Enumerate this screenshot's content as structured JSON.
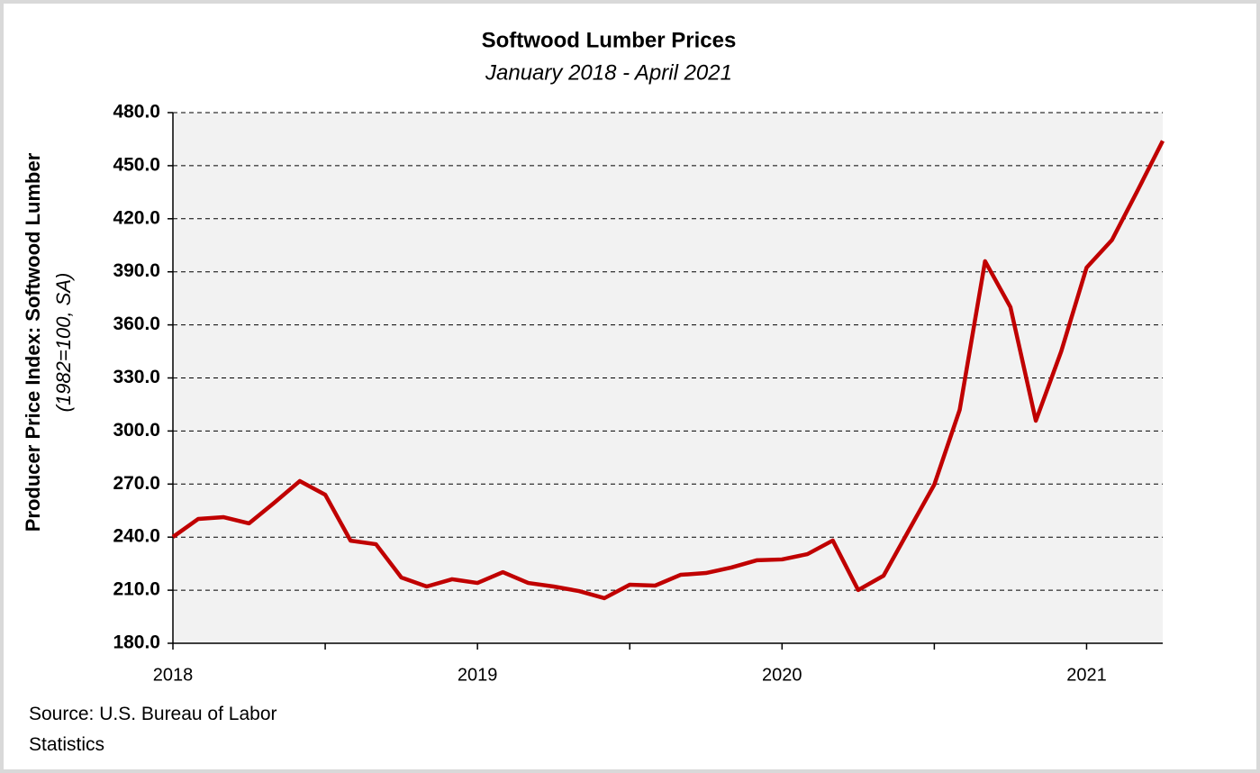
{
  "chart_data": {
    "type": "line",
    "title": "Softwood Lumber Prices",
    "subtitle": "January 2018 - April 2021",
    "y_label": "Producer Price Index: Softwood Lumber",
    "y_label_note": "(1982=100, SA)",
    "source": "Source: U.S. Bureau of Labor Statistics",
    "categories": [
      "2018",
      null,
      null,
      null,
      null,
      null,
      null,
      null,
      null,
      null,
      null,
      null,
      "2019",
      null,
      null,
      null,
      null,
      null,
      null,
      null,
      null,
      null,
      null,
      null,
      "2020",
      null,
      null,
      null,
      null,
      null,
      null,
      null,
      null,
      null,
      null,
      null,
      "2021",
      null,
      null,
      null
    ],
    "series": [
      {
        "name": "Softwood Lumber PPI",
        "color": "#c00000",
        "values": [
          240.1,
          250.3,
          251.3,
          247.8,
          259.5,
          271.7,
          264.0,
          238.0,
          236.0,
          217.2,
          212.1,
          216.2,
          214.1,
          220.2,
          214.1,
          212.1,
          209.5,
          205.5,
          213.1,
          212.6,
          218.7,
          219.7,
          222.8,
          226.9,
          227.4,
          230.4,
          238.1,
          210.1,
          218.2,
          244.0,
          269.7,
          312.0,
          396.0,
          370.0,
          305.8,
          345.0,
          392.4,
          408.0,
          435.7,
          464.0
        ]
      }
    ],
    "ylim": [
      180,
      480
    ],
    "yticks": [
      {
        "value": 180,
        "label": "180.0"
      },
      {
        "value": 210,
        "label": "210.0"
      },
      {
        "value": 240,
        "label": "240.0"
      },
      {
        "value": 270,
        "label": "270.0"
      },
      {
        "value": 300,
        "label": "300.0"
      },
      {
        "value": 330,
        "label": "330.0"
      },
      {
        "value": 360,
        "label": "360.0"
      },
      {
        "value": 390,
        "label": "390.0"
      },
      {
        "value": 420,
        "label": "420.0"
      },
      {
        "value": 450,
        "label": "450.0"
      },
      {
        "value": 480,
        "label": "480.0"
      }
    ],
    "grid": true,
    "plot_background": "#f2f2f2"
  }
}
